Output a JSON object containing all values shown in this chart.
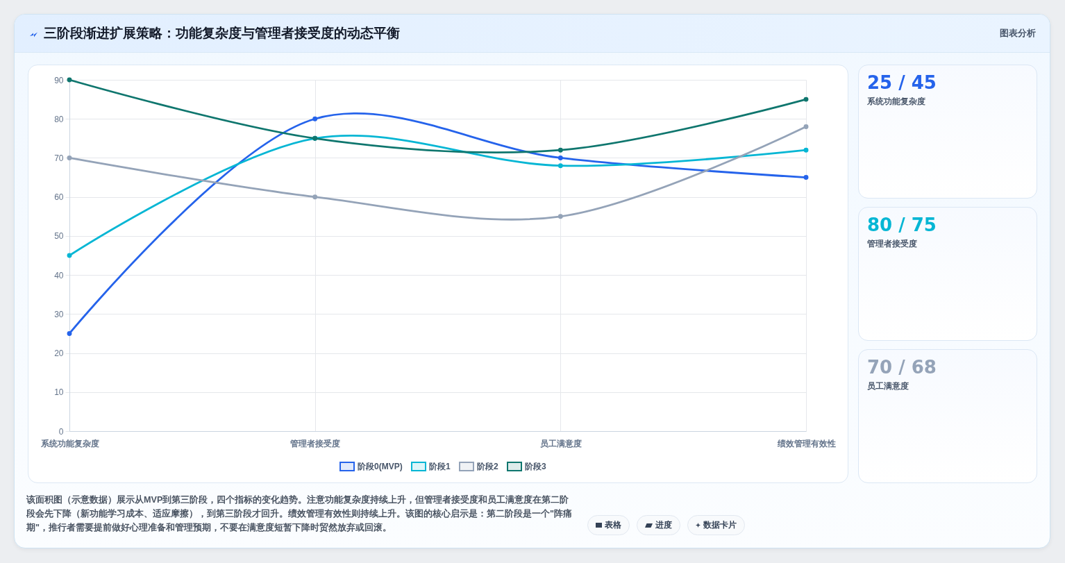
{
  "chart_data": [
    {
      "type": "line",
      "title": "三阶段渐进扩展策略：功能复杂度与管理者接受度的动态平衡",
      "categories": [
        "系统功能复杂度",
        "管理者接受度",
        "员工满意度",
        "绩效管理有效性"
      ],
      "series": [
        {
          "name": "阶段0(MVP)",
          "color": "#2563eb",
          "values": [
            25,
            80,
            70,
            65
          ]
        },
        {
          "name": "阶段1",
          "color": "#06b6d4",
          "values": [
            45,
            75,
            68,
            72
          ]
        },
        {
          "name": "阶段2",
          "color": "#94a3b8",
          "values": [
            70,
            60,
            55,
            78
          ]
        },
        {
          "name": "阶段3",
          "color": "#0f766e",
          "values": [
            90,
            75,
            72,
            85
          ]
        }
      ],
      "ylim": [
        0,
        90
      ],
      "yticks": [
        0,
        10,
        20,
        30,
        40,
        50,
        60,
        70,
        80,
        90
      ],
      "grid": true,
      "legend": "bottom",
      "marker": "circle",
      "line_style": "solid",
      "annotations": [
        "该面积图（示意数据）展示从MVP到第三阶段，四个指标的变化趋势。注意功能复杂度持续上升，但管理者接受度和员工满意度在第二阶段会先下降（新功能学习成本、适应摩擦），到第三阶段才回升。绩效管理有效性则持续上升。该图的核心启示是：第二阶段是一个\"阵痛期\"，推行者需要提前做好心理准备和管理预期，不要在满意度短暂下降时贸然放弃或回滚。",
        "图表分析",
        "表格",
        "进度",
        "数据卡片"
      ]
    },
    {
      "type": "other",
      "annotations": [
        "25 / 45",
        "系统功能复杂度",
        "80 / 75",
        "管理者接受度",
        "70 / 68",
        "员工满意度"
      ],
      "colors": [
        "#2563eb",
        "#06b6d4",
        "#94a3b8"
      ]
    }
  ]
}
